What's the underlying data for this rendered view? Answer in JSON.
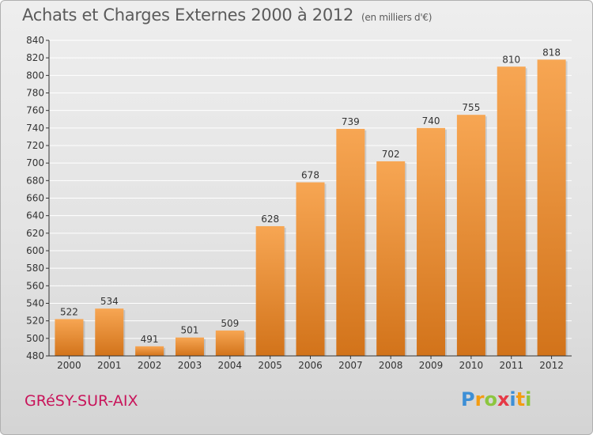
{
  "title": "Achats et Charges Externes 2000 à 2012",
  "unit": "(en milliers d'€)",
  "city": "GRéSY-SUR-AIX",
  "logo": {
    "letters": [
      "P",
      "r",
      "o",
      "x",
      "i",
      "t",
      "i"
    ],
    "colors": [
      "#3d8fd6",
      "#f39c12",
      "#8cc63f",
      "#e63946",
      "#3d8fd6",
      "#f39c12",
      "#8cc63f"
    ]
  },
  "colors": {
    "bar_top": "#f7a653",
    "bar_bottom": "#d2731a",
    "grid": "#ffffff",
    "axis": "#333333",
    "text": "#333333"
  },
  "chart_data": {
    "type": "bar",
    "title": "Achats et Charges Externes 2000 à 2012",
    "categories": [
      "2000",
      "2001",
      "2002",
      "2003",
      "2004",
      "2005",
      "2006",
      "2007",
      "2008",
      "2009",
      "2010",
      "2011",
      "2012"
    ],
    "values": [
      522,
      534,
      491,
      501,
      509,
      628,
      678,
      739,
      702,
      740,
      755,
      810,
      818
    ],
    "ylim": [
      480,
      840
    ],
    "yticks": [
      480,
      500,
      520,
      540,
      560,
      580,
      600,
      620,
      640,
      660,
      680,
      700,
      720,
      740,
      760,
      780,
      800,
      820,
      840
    ],
    "grid": true,
    "xlabel": "",
    "ylabel": ""
  }
}
